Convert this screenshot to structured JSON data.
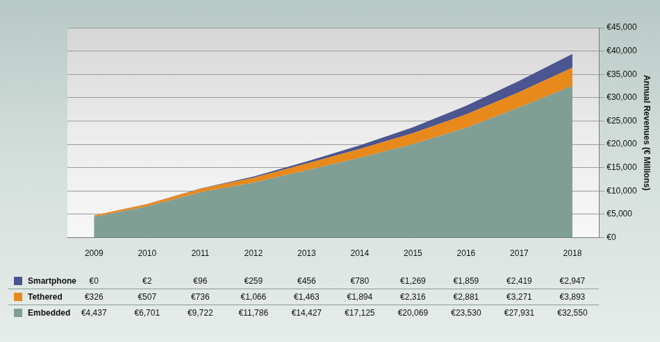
{
  "chart_data": {
    "type": "area",
    "stacked": true,
    "grid": true,
    "y_label": "Annual Revenues (€ Millions)",
    "categories": [
      "2009",
      "2010",
      "2011",
      "2012",
      "2013",
      "2014",
      "2015",
      "2016",
      "2017",
      "2018"
    ],
    "ylim": [
      0,
      45000
    ],
    "yticks": [
      {
        "value": 0,
        "label": "€0"
      },
      {
        "value": 5000,
        "label": "€5,000"
      },
      {
        "value": 10000,
        "label": "€10,000"
      },
      {
        "value": 15000,
        "label": "€15,000"
      },
      {
        "value": 20000,
        "label": "€20,000"
      },
      {
        "value": 25000,
        "label": "€25,000"
      },
      {
        "value": 30000,
        "label": "€30,000"
      },
      {
        "value": 35000,
        "label": "€35,000"
      },
      {
        "value": 40000,
        "label": "€40,000"
      },
      {
        "value": 45000,
        "label": "€45,000"
      }
    ],
    "series": [
      {
        "name": "Smartphone",
        "color": "#4b5590",
        "values": [
          0,
          2,
          96,
          259,
          456,
          780,
          1269,
          1859,
          2419,
          2947
        ],
        "value_labels": [
          "€0",
          "€2",
          "€96",
          "€259",
          "€456",
          "€780",
          "€1,269",
          "€1,859",
          "€2,419",
          "€2,947"
        ]
      },
      {
        "name": "Tethered",
        "color": "#e8891c",
        "values": [
          326,
          507,
          736,
          1066,
          1463,
          1894,
          2316,
          2881,
          3271,
          3893
        ],
        "value_labels": [
          "€326",
          "€507",
          "€736",
          "€1,066",
          "€1,463",
          "€1,894",
          "€2,316",
          "€2,881",
          "€3,271",
          "€3,893"
        ]
      },
      {
        "name": "Embedded",
        "color": "#7f9e94",
        "values": [
          4437,
          6701,
          9722,
          11786,
          14427,
          17125,
          20069,
          23530,
          27931,
          32550
        ],
        "value_labels": [
          "€4,437",
          "€6,701",
          "€9,722",
          "€11,786",
          "€14,427",
          "€17,125",
          "€20,069",
          "€23,530",
          "€27,931",
          "€32,550"
        ]
      }
    ]
  }
}
